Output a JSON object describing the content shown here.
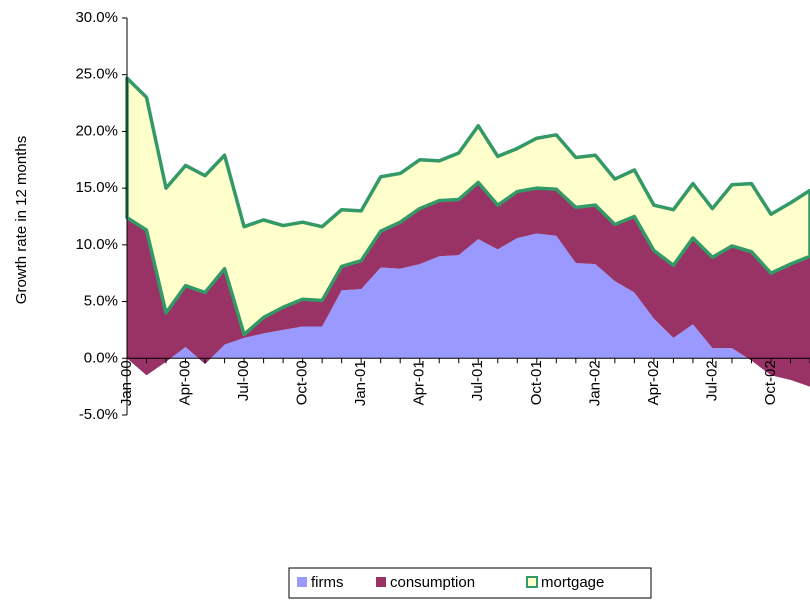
{
  "chart_data": {
    "type": "stacked-area",
    "y_label": "Growth rate in 12 months",
    "categories": [
      "Jan-00",
      null,
      null,
      "Apr-00",
      null,
      null,
      "Jul-00",
      null,
      null,
      "Oct-00",
      null,
      null,
      "Jan-01",
      null,
      null,
      "Apr-01",
      null,
      null,
      "Jul-01",
      null,
      null,
      "Oct-01",
      null,
      null,
      "Jan-02",
      null,
      null,
      "Apr-02",
      null,
      null,
      "Jul-02",
      null,
      null,
      "Oct-02",
      null,
      null
    ],
    "series": [
      {
        "name": "firms",
        "color": "#9999ff",
        "values": [
          0,
          -1.5,
          -0.3,
          1.0,
          -0.5,
          1.2,
          1.8,
          2.2,
          2.5,
          2.8,
          2.8,
          6.0,
          6.1,
          8.0,
          7.9,
          8.3,
          9.0,
          9.1,
          10.5,
          9.6,
          10.6,
          11.0,
          10.8,
          8.4,
          8.3,
          6.8,
          5.8,
          3.5,
          1.8,
          3.0,
          0.9,
          0.9,
          -0.2,
          -1.5,
          -1.9,
          -2.5
        ]
      },
      {
        "name": "consumption",
        "color": "#993366",
        "values": [
          12.4,
          12.8,
          4.3,
          5.4,
          6.3,
          6.7,
          0.3,
          1.4,
          2.0,
          2.4,
          2.3,
          2.1,
          2.5,
          3.2,
          4.1,
          4.9,
          4.9,
          4.9,
          5.0,
          3.9,
          4.1,
          4.0,
          4.1,
          4.9,
          5.2,
          5.0,
          6.7,
          6.0,
          6.4,
          7.6,
          8.0,
          9.0,
          9.6,
          9.0,
          10.2,
          11.5
        ]
      },
      {
        "name": "mortgage",
        "color": "#ffffcc",
        "edge_color": "#339966",
        "values": [
          12.3,
          11.7,
          11.0,
          10.6,
          10.3,
          10.0,
          9.5,
          8.6,
          7.2,
          6.8,
          6.5,
          5.0,
          4.4,
          4.8,
          4.3,
          4.3,
          3.5,
          4.1,
          5.0,
          4.3,
          3.8,
          4.4,
          4.8,
          4.4,
          4.4,
          4.0,
          4.1,
          4.0,
          4.9,
          4.8,
          4.3,
          5.4,
          6.0,
          5.2,
          5.4,
          5.8
        ]
      }
    ],
    "ylim": [
      -5,
      30
    ],
    "yticks": [
      {
        "value": -5,
        "label": "-5.0%"
      },
      {
        "value": 0,
        "label": "0.0%"
      },
      {
        "value": 5,
        "label": "5.0%"
      },
      {
        "value": 10,
        "label": "10.0%"
      },
      {
        "value": 15,
        "label": "15.0%"
      },
      {
        "value": 20,
        "label": "20.0%"
      },
      {
        "value": 25,
        "label": "25.0%"
      },
      {
        "value": 30,
        "label": "30.0%"
      }
    ],
    "grid": false,
    "legend": "bottom"
  }
}
